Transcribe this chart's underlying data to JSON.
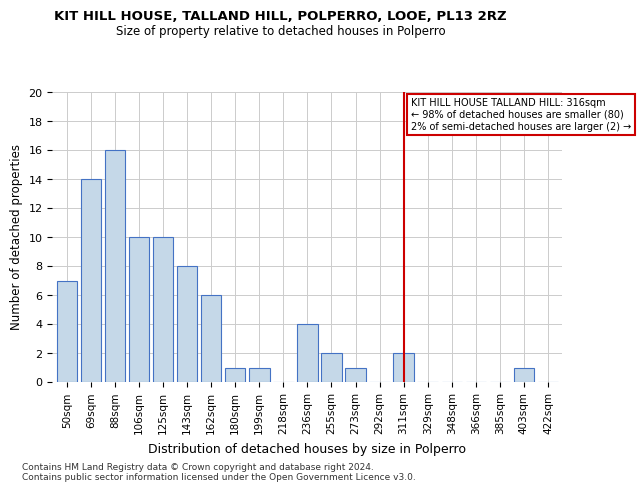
{
  "title": "KIT HILL HOUSE, TALLAND HILL, POLPERRO, LOOE, PL13 2RZ",
  "subtitle": "Size of property relative to detached houses in Polperro",
  "xlabel": "Distribution of detached houses by size in Polperro",
  "ylabel": "Number of detached properties",
  "bar_labels": [
    "50sqm",
    "69sqm",
    "88sqm",
    "106sqm",
    "125sqm",
    "143sqm",
    "162sqm",
    "180sqm",
    "199sqm",
    "218sqm",
    "236sqm",
    "255sqm",
    "273sqm",
    "292sqm",
    "311sqm",
    "329sqm",
    "348sqm",
    "366sqm",
    "385sqm",
    "403sqm",
    "422sqm"
  ],
  "bar_values": [
    7,
    14,
    16,
    10,
    10,
    8,
    6,
    1,
    1,
    0,
    4,
    2,
    1,
    0,
    2,
    0,
    0,
    0,
    0,
    1,
    0
  ],
  "bar_color": "#c5d8e8",
  "bar_edge_color": "#4472c4",
  "marker_idx": 14,
  "marker_label_line1": "KIT HILL HOUSE TALLAND HILL: 316sqm",
  "marker_label_line2": "← 98% of detached houses are smaller (80)",
  "marker_label_line3": "2% of semi-detached houses are larger (2) →",
  "marker_color": "#cc0000",
  "ylim": [
    0,
    20
  ],
  "yticks": [
    0,
    2,
    4,
    6,
    8,
    10,
    12,
    14,
    16,
    18,
    20
  ],
  "footnote1": "Contains HM Land Registry data © Crown copyright and database right 2024.",
  "footnote2": "Contains public sector information licensed under the Open Government Licence v3.0.",
  "bg_color": "#ffffff",
  "grid_color": "#cccccc"
}
